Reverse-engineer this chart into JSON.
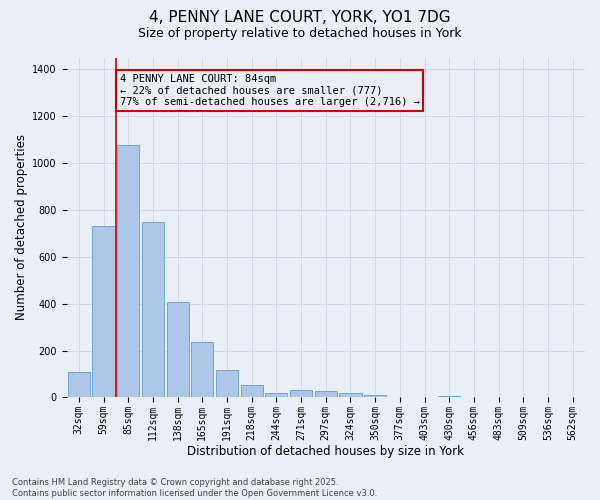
{
  "title_line1": "4, PENNY LANE COURT, YORK, YO1 7DG",
  "title_line2": "Size of property relative to detached houses in York",
  "xlabel": "Distribution of detached houses by size in York",
  "ylabel": "Number of detached properties",
  "categories": [
    "32sqm",
    "59sqm",
    "85sqm",
    "112sqm",
    "138sqm",
    "165sqm",
    "191sqm",
    "218sqm",
    "244sqm",
    "271sqm",
    "297sqm",
    "324sqm",
    "350sqm",
    "377sqm",
    "403sqm",
    "430sqm",
    "456sqm",
    "483sqm",
    "509sqm",
    "536sqm",
    "562sqm"
  ],
  "values": [
    110,
    730,
    1075,
    750,
    405,
    238,
    118,
    55,
    18,
    30,
    27,
    20,
    10,
    0,
    0,
    5,
    0,
    0,
    0,
    0,
    0
  ],
  "bar_color": "#aec6e8",
  "bar_edge_color": "#5a9fd4",
  "grid_color": "#d0d8e8",
  "background_color": "#eaeff7",
  "annotation_box_text": "4 PENNY LANE COURT: 84sqm\n← 22% of detached houses are smaller (777)\n77% of semi-detached houses are larger (2,716) →",
  "annotation_box_color": "#cc0000",
  "vline_color": "#cc0000",
  "vline_x_index": 2,
  "ylim": [
    0,
    1450
  ],
  "yticks": [
    0,
    200,
    400,
    600,
    800,
    1000,
    1200,
    1400
  ],
  "footnote": "Contains HM Land Registry data © Crown copyright and database right 2025.\nContains public sector information licensed under the Open Government Licence v3.0.",
  "title_fontsize": 11,
  "subtitle_fontsize": 9,
  "axis_label_fontsize": 8.5,
  "tick_fontsize": 7,
  "annotation_fontsize": 7.5,
  "footnote_fontsize": 6
}
